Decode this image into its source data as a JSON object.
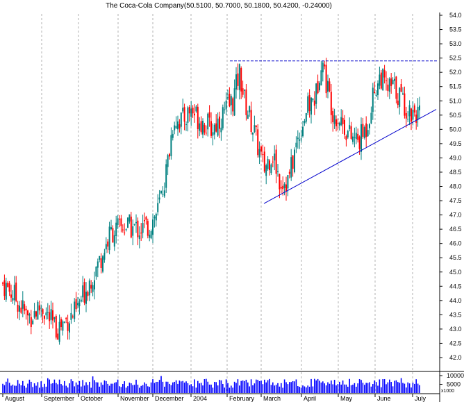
{
  "chart_data": {
    "type": "candlestick",
    "title": "The Coca-Cola Company(50.5100, 50.7000, 50.1800, 50.4200, -0.24000)",
    "price_axis": {
      "ylim": [
        41.5,
        54.35
      ],
      "ticks": [
        "42.0",
        "42.5",
        "43.0",
        "43.5",
        "44.0",
        "44.5",
        "45.0",
        "45.5",
        "46.0",
        "46.5",
        "47.0",
        "47.5",
        "48.0",
        "48.5",
        "49.0",
        "49.5",
        "50.0",
        "50.5",
        "51.0",
        "51.5",
        "52.0",
        "52.5",
        "53.0",
        "53.5",
        "54.0"
      ]
    },
    "volume_axis": {
      "ylim": [
        0,
        12500
      ],
      "ticks": [
        "5000",
        "10000"
      ],
      "multiplier_label": "x1000"
    },
    "x_labels": [
      "August",
      "September",
      "October",
      "November",
      "December",
      "2004",
      "February",
      "March",
      "April",
      "May",
      "June",
      "July"
    ],
    "colors": {
      "up": "#008080",
      "down": "#ff0000",
      "volume": "#0000ff",
      "line": "#0000cc",
      "grid": "#b0b0b0"
    },
    "resistance_level": 52.4,
    "trendline": {
      "start": {
        "month": "March",
        "value": 47.4
      },
      "end": {
        "month": "July",
        "value": 50.7
      }
    },
    "monthly_closes": {
      "August": 44.4,
      "September": 43.8,
      "October": 45.5,
      "November": 46.6,
      "December": 50.8,
      "2004": 50.5,
      "February": 51.0,
      "March": 48.4,
      "April": 50.9,
      "May": 49.6,
      "June": 51.3,
      "July": 50.4
    },
    "ohlc": []
  }
}
